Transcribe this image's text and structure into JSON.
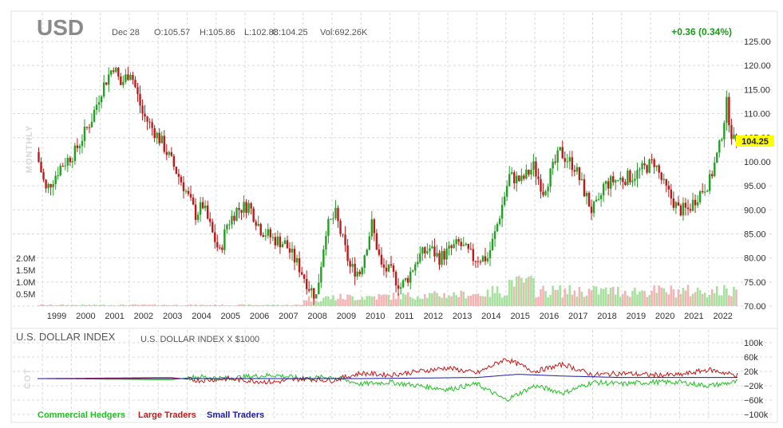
{
  "header": {
    "ticker": "USD",
    "date": "Dec 28",
    "open": "O:105.57",
    "high": "H:105.86",
    "low": "L:102.88",
    "close": "C:104.25",
    "volume": "Vol:692.26K",
    "change": "+0.36 (0.34%)",
    "period_label": "MONTHLY",
    "last_price": "104.25",
    "change_color": "#1a9a1a",
    "last_price_bg": "#ffff00"
  },
  "price_panel": {
    "y_ticks": [
      "125.00",
      "120.00",
      "115.00",
      "110.00",
      "105.00",
      "100.00",
      "95.00",
      "90.00",
      "85.00",
      "80.00",
      "75.00",
      "70.00"
    ],
    "volume_ticks": [
      "2.0M",
      "1.5M",
      "1.0M",
      "0.5M"
    ],
    "x_ticks": [
      "1999",
      "2000",
      "2001",
      "2002",
      "2003",
      "2004",
      "2005",
      "2006",
      "2007",
      "2008",
      "2009",
      "2010",
      "2011",
      "2012",
      "2013",
      "2014",
      "2015",
      "2016",
      "2017",
      "2018",
      "2019",
      "2020",
      "2021",
      "2022"
    ],
    "up_color": "#22a022",
    "down_color": "#c01818",
    "vol_up_color": "#a8e0a0",
    "vol_down_color": "#f4b4b4"
  },
  "cot_panel": {
    "title": "U.S. DOLLAR INDEX",
    "subtitle": "U.S. DOLLAR INDEX X $1000",
    "side_label": "COT",
    "y_ticks": [
      "100k",
      "60k",
      "20k",
      "−20k",
      "−60k",
      "−100k"
    ],
    "legend": [
      {
        "name": "Commercial Hedgers",
        "color": "#22c022"
      },
      {
        "name": "Large Traders",
        "color": "#c81818"
      },
      {
        "name": "Small Traders",
        "color": "#1a1aa8"
      }
    ]
  },
  "chart_data": {
    "type": "candlestick",
    "period": "monthly",
    "last": {
      "date": "Dec 28",
      "open": 105.57,
      "high": 105.86,
      "low": 102.88,
      "close": 104.25,
      "volume": "692.26K"
    },
    "ylim": [
      70,
      125
    ],
    "close_path": [
      [
        "1998-11",
        102
      ],
      [
        "1999-03",
        94
      ],
      [
        "1999-09",
        99
      ],
      [
        "2000-03",
        102
      ],
      [
        "2000-10",
        109
      ],
      [
        "2001-02",
        115
      ],
      [
        "2001-07",
        120
      ],
      [
        "2001-10",
        116
      ],
      [
        "2002-02",
        119
      ],
      [
        "2002-07",
        110
      ],
      [
        "2003-03",
        104
      ],
      [
        "2003-12",
        95
      ],
      [
        "2004-05",
        89
      ],
      [
        "2004-08",
        91
      ],
      [
        "2004-12",
        85
      ],
      [
        "2005-03",
        81
      ],
      [
        "2005-06",
        87
      ],
      [
        "2005-10",
        90
      ],
      [
        "2006-03",
        91
      ],
      [
        "2006-08",
        86
      ],
      [
        "2007-01",
        84
      ],
      [
        "2007-06",
        83
      ],
      [
        "2007-12",
        78
      ],
      [
        "2008-04",
        74
      ],
      [
        "2008-07",
        72
      ],
      [
        "2008-11",
        86
      ],
      [
        "2009-03",
        89
      ],
      [
        "2009-09",
        78
      ],
      [
        "2010-01",
        77
      ],
      [
        "2010-06",
        87
      ],
      [
        "2010-10",
        78
      ],
      [
        "2011-02",
        77
      ],
      [
        "2011-06",
        74
      ],
      [
        "2011-09",
        76
      ],
      [
        "2012-01",
        80
      ],
      [
        "2012-06",
        82
      ],
      [
        "2012-10",
        80
      ],
      [
        "2013-06",
        83
      ],
      [
        "2013-12",
        80
      ],
      [
        "2014-06",
        80
      ],
      [
        "2014-09",
        85
      ],
      [
        "2015-03",
        97
      ],
      [
        "2015-08",
        96
      ],
      [
        "2016-01",
        99
      ],
      [
        "2016-05",
        94
      ],
      [
        "2016-12",
        102
      ],
      [
        "2017-06",
        99
      ],
      [
        "2018-01",
        90
      ],
      [
        "2018-04",
        91
      ],
      [
        "2018-06",
        95
      ],
      [
        "2018-10",
        96
      ],
      [
        "2019-06",
        97
      ],
      [
        "2019-12",
        99
      ],
      [
        "2020-03",
        100
      ],
      [
        "2020-07",
        95
      ],
      [
        "2021-01",
        90
      ],
      [
        "2021-05",
        90
      ],
      [
        "2021-09",
        93
      ],
      [
        "2022-02",
        96
      ],
      [
        "2022-06",
        103
      ],
      [
        "2022-09",
        112
      ],
      [
        "2022-11",
        106
      ],
      [
        "2022-12",
        104.25
      ]
    ],
    "cot_series": [
      {
        "name": "Commercial Hedgers",
        "values": [
          [
            "1999-01",
            0
          ],
          [
            "2003-06",
            -3
          ],
          [
            "2004-06",
            5
          ],
          [
            "2005-06",
            0
          ],
          [
            "2006-01",
            5
          ],
          [
            "2007-01",
            10
          ],
          [
            "2008-01",
            0
          ],
          [
            "2009-01",
            5
          ],
          [
            "2010-01",
            -15
          ],
          [
            "2011-01",
            -10
          ],
          [
            "2012-01",
            -20
          ],
          [
            "2013-01",
            -30
          ],
          [
            "2014-01",
            -15
          ],
          [
            "2015-01",
            -60
          ],
          [
            "2016-01",
            -20
          ],
          [
            "2017-01",
            -40
          ],
          [
            "2018-01",
            -10
          ],
          [
            "2019-01",
            -15
          ],
          [
            "2020-01",
            -10
          ],
          [
            "2021-01",
            -10
          ],
          [
            "2022-01",
            -20
          ],
          [
            "2022-12",
            -10
          ]
        ]
      },
      {
        "name": "Large Traders",
        "values": [
          [
            "1999-01",
            0
          ],
          [
            "2003-06",
            3
          ],
          [
            "2004-06",
            -5
          ],
          [
            "2005-06",
            0
          ],
          [
            "2006-01",
            -5
          ],
          [
            "2007-01",
            -10
          ],
          [
            "2008-01",
            0
          ],
          [
            "2009-01",
            -5
          ],
          [
            "2010-01",
            15
          ],
          [
            "2011-01",
            10
          ],
          [
            "2012-01",
            20
          ],
          [
            "2013-01",
            30
          ],
          [
            "2014-01",
            15
          ],
          [
            "2015-01",
            55
          ],
          [
            "2016-01",
            20
          ],
          [
            "2017-01",
            40
          ],
          [
            "2018-01",
            10
          ],
          [
            "2019-01",
            15
          ],
          [
            "2020-01",
            10
          ],
          [
            "2021-01",
            10
          ],
          [
            "2022-01",
            25
          ],
          [
            "2022-12",
            10
          ]
        ]
      },
      {
        "name": "Small Traders",
        "values": [
          [
            "1999-01",
            0
          ],
          [
            "2004-01",
            0
          ],
          [
            "2010-01",
            0
          ],
          [
            "2014-01",
            3
          ],
          [
            "2015-06",
            12
          ],
          [
            "2017-01",
            7
          ],
          [
            "2019-01",
            3
          ],
          [
            "2022-12",
            3
          ]
        ]
      }
    ],
    "cot_ylim": [
      -100,
      100
    ]
  }
}
